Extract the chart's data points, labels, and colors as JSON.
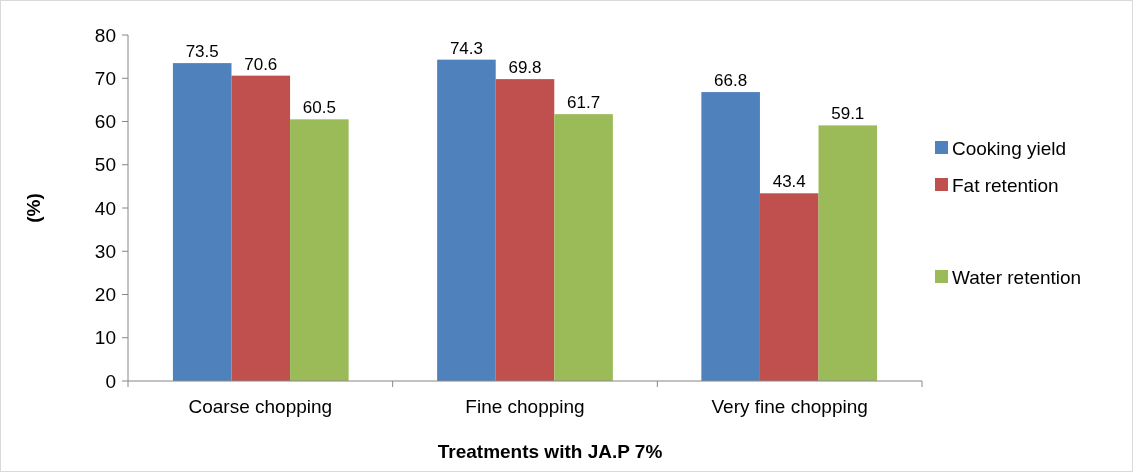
{
  "chart_data": {
    "type": "bar",
    "xlabel": "Treatments with JA.P 7%",
    "ylabel": "(%)",
    "categories": [
      "Coarse chopping",
      "Fine chopping",
      "Very fine chopping"
    ],
    "series": [
      {
        "name": "Cooking yield",
        "color": "#4f81bd",
        "values": [
          73.5,
          74.3,
          66.8
        ]
      },
      {
        "name": "Fat retention",
        "color": "#c0504d",
        "values": [
          70.6,
          69.8,
          43.4
        ]
      },
      {
        "name": "Water retention",
        "color": "#9bbb59",
        "values": [
          60.5,
          61.7,
          59.1
        ]
      }
    ],
    "ylim": [
      0,
      80
    ],
    "yticks": [
      0,
      10,
      20,
      30,
      40,
      50,
      60,
      70,
      80
    ],
    "grid": false,
    "legend": "right",
    "data_labels": true
  }
}
